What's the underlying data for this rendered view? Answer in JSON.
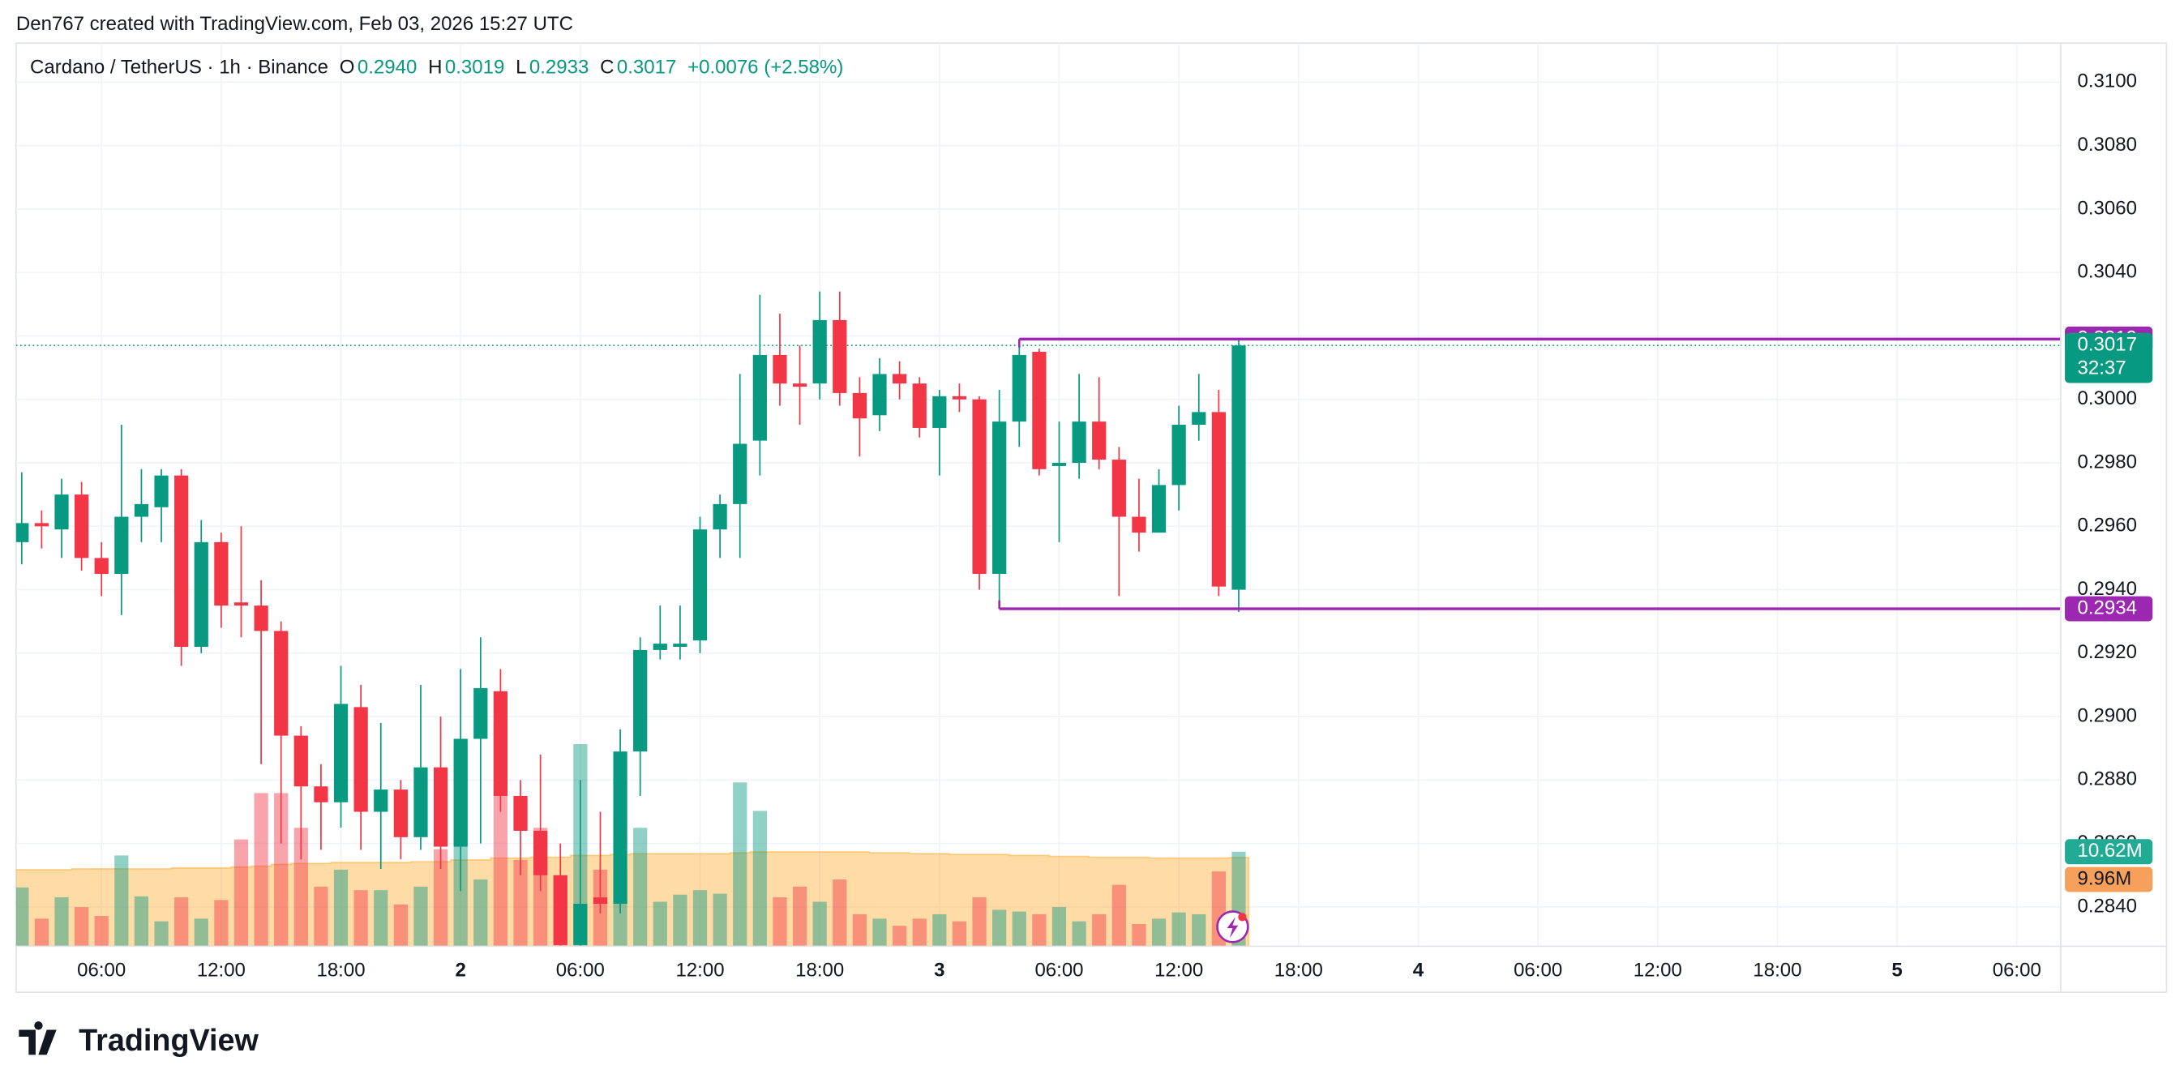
{
  "header": {
    "credit": "Den767 created with TradingView.com, Feb 03, 2026 15:27 UTC",
    "logo": "TradingView"
  },
  "chart_data": {
    "type": "candlestick",
    "symbol": "Cardano / TetherUS · 1h · Binance",
    "legend": {
      "o_key": "O",
      "o": "0.2940",
      "h_key": "H",
      "h": "0.3019",
      "l_key": "L",
      "l": "0.2933",
      "c_key": "C",
      "c": "0.3017",
      "change": "+0.0076 (+2.58%)"
    },
    "categories": [
      null,
      null,
      null,
      null,
      null,
      null,
      null,
      null,
      null,
      null,
      null,
      null,
      null,
      null,
      null,
      null,
      null,
      null,
      null,
      null,
      null,
      null,
      null,
      null,
      null,
      null,
      null,
      null,
      null,
      null,
      null,
      null,
      null,
      null,
      null,
      null,
      null,
      null,
      null,
      null,
      null,
      null,
      null,
      null,
      null,
      null,
      null,
      null,
      null,
      null,
      null,
      null,
      null,
      null,
      null,
      null,
      null,
      null,
      null,
      null,
      null,
      null
    ],
    "open": [
      0.2955,
      0.2961,
      0.2959,
      0.297,
      0.295,
      0.2945,
      0.2963,
      0.2966,
      0.2976,
      0.2922,
      0.2955,
      0.2936,
      0.2935,
      0.2927,
      0.2894,
      0.2878,
      0.2873,
      0.2903,
      0.287,
      0.2877,
      0.2862,
      0.2884,
      0.2859,
      0.2893,
      0.2908,
      0.2875,
      0.2864,
      0.285,
      0.2828,
      0.2843,
      0.2841,
      0.2889,
      0.2921,
      0.2922,
      0.2924,
      0.2959,
      0.2967,
      0.2987,
      0.3014,
      0.3005,
      0.3005,
      0.3025,
      0.3002,
      0.2995,
      0.3008,
      0.3005,
      0.2991,
      0.3001,
      0.3,
      0.2945,
      0.2993,
      0.3015,
      0.2979,
      0.298,
      0.2993,
      0.2981,
      0.2963,
      0.2958,
      0.2973,
      0.2992,
      0.2996,
      0.294
    ],
    "high": [
      0.2977,
      0.2965,
      0.2975,
      0.2974,
      0.2955,
      0.2992,
      0.2978,
      0.2978,
      0.2978,
      0.2962,
      0.2958,
      0.296,
      0.2943,
      0.293,
      0.2897,
      0.2885,
      0.2916,
      0.291,
      0.2898,
      0.288,
      0.291,
      0.29,
      0.2915,
      0.2925,
      0.2915,
      0.288,
      0.2888,
      0.286,
      0.288,
      0.287,
      0.2896,
      0.2925,
      0.2935,
      0.2935,
      0.2963,
      0.297,
      0.3008,
      0.3033,
      0.3027,
      0.3017,
      0.3034,
      0.3034,
      0.3007,
      0.3013,
      0.3012,
      0.3007,
      0.3003,
      0.3005,
      0.3001,
      0.3003,
      0.3019,
      0.3016,
      0.2993,
      0.3008,
      0.3007,
      0.2985,
      0.2975,
      0.2978,
      0.2998,
      0.3008,
      0.3003,
      0.3019
    ],
    "low": [
      0.2948,
      0.2953,
      0.295,
      0.2946,
      0.2938,
      0.2932,
      0.2955,
      0.2955,
      0.2916,
      0.292,
      0.2928,
      0.2925,
      0.2885,
      0.286,
      0.2855,
      0.2858,
      0.2865,
      0.2858,
      0.2852,
      0.2855,
      0.2858,
      0.2852,
      0.2845,
      0.286,
      0.287,
      0.285,
      0.2845,
      0.2826,
      0.2826,
      0.2838,
      0.2838,
      0.2875,
      0.2918,
      0.2918,
      0.292,
      0.295,
      0.295,
      0.2976,
      0.2998,
      0.2992,
      0.3,
      0.2998,
      0.2982,
      0.299,
      0.3,
      0.2988,
      0.2976,
      0.2996,
      0.294,
      0.2934,
      0.2985,
      0.2976,
      0.2955,
      0.2975,
      0.2978,
      0.2938,
      0.2952,
      0.2958,
      0.2965,
      0.2987,
      0.2938,
      0.2933
    ],
    "close": [
      0.2961,
      0.296,
      0.297,
      0.295,
      0.2945,
      0.2963,
      0.2967,
      0.2976,
      0.2922,
      0.2955,
      0.2935,
      0.2935,
      0.2927,
      0.2894,
      0.2878,
      0.2873,
      0.2904,
      0.287,
      0.2877,
      0.2862,
      0.2884,
      0.2859,
      0.2893,
      0.2909,
      0.2875,
      0.2864,
      0.285,
      0.2828,
      0.2841,
      0.2841,
      0.2889,
      0.2921,
      0.2923,
      0.2923,
      0.2959,
      0.2967,
      0.2986,
      0.3014,
      0.3005,
      0.3004,
      0.3025,
      0.3002,
      0.2994,
      0.3008,
      0.3005,
      0.2991,
      0.3001,
      0.3,
      0.2945,
      0.2993,
      0.3014,
      0.2978,
      0.298,
      0.2993,
      0.2981,
      0.2963,
      0.2958,
      0.2973,
      0.2992,
      0.2996,
      0.2941,
      0.3017
    ],
    "volume": {
      "values": [
        6.6,
        3.1,
        5.5,
        4.4,
        3.4,
        10.2,
        5.6,
        2.8,
        5.5,
        3.1,
        5.2,
        12.0,
        17.2,
        17.2,
        13.3,
        6.7,
        8.6,
        6.3,
        6.3,
        4.7,
        6.7,
        10.9,
        22.2,
        7.5,
        25.3,
        9.7,
        13.3,
        7.8,
        22.7,
        8.6,
        8.6,
        13.3,
        5.0,
        5.8,
        6.3,
        5.9,
        18.4,
        15.2,
        5.5,
        6.7,
        5.0,
        7.5,
        3.6,
        3.1,
        2.3,
        3.1,
        3.6,
        2.8,
        5.5,
        4.1,
        3.9,
        3.6,
        4.4,
        2.8,
        3.6,
        6.9,
        2.5,
        3.1,
        3.8,
        3.6,
        8.4,
        10.62
      ],
      "last_label": "10.62M"
    },
    "volume_ma": {
      "values": [
        8.6,
        8.6,
        8.6,
        8.7,
        8.7,
        8.7,
        8.7,
        8.7,
        8.8,
        8.8,
        8.8,
        8.9,
        9.0,
        9.2,
        9.3,
        9.3,
        9.4,
        9.4,
        9.4,
        9.4,
        9.5,
        9.5,
        9.7,
        9.7,
        9.9,
        9.9,
        10.0,
        10.0,
        10.2,
        10.2,
        10.3,
        10.4,
        10.4,
        10.4,
        10.4,
        10.4,
        10.5,
        10.6,
        10.6,
        10.6,
        10.6,
        10.6,
        10.6,
        10.5,
        10.5,
        10.4,
        10.4,
        10.3,
        10.3,
        10.3,
        10.2,
        10.2,
        10.1,
        10.1,
        10.0,
        10.0,
        10.0,
        9.9,
        9.9,
        9.9,
        9.9,
        9.96
      ],
      "last_label": "9.96M"
    },
    "volume_ylim": [
      0,
      50
    ],
    "up_color": "#089981",
    "down_color": "#f23645",
    "line_color": "#9c27b0",
    "ma_color": "#ff9800",
    "high_line": {
      "value": 0.3019,
      "start": 50
    },
    "low_line": {
      "value": 0.2934,
      "start": 49
    },
    "last_price": 0.3017,
    "countdown": "32:37",
    "xlim": [
      -0.28,
      102.2
    ],
    "xticks": [
      {
        "value": 4,
        "label": "06:00"
      },
      {
        "value": 10,
        "label": "12:00"
      },
      {
        "value": 16,
        "label": "18:00"
      },
      {
        "value": 22,
        "label": "2"
      },
      {
        "value": 28,
        "label": "06:00"
      },
      {
        "value": 34,
        "label": "12:00"
      },
      {
        "value": 40,
        "label": "18:00"
      },
      {
        "value": 46,
        "label": "3"
      },
      {
        "value": 52,
        "label": "06:00"
      },
      {
        "value": 58,
        "label": "12:00"
      },
      {
        "value": 64,
        "label": "18:00"
      },
      {
        "value": 70,
        "label": "4"
      },
      {
        "value": 76,
        "label": "06:00"
      },
      {
        "value": 82,
        "label": "12:00"
      },
      {
        "value": 88,
        "label": "18:00"
      },
      {
        "value": 94,
        "label": "5"
      },
      {
        "value": 100,
        "label": "06:00"
      }
    ],
    "ylim": [
      0.28276,
      0.31123
    ],
    "yticks": [
      {
        "value": 0.284,
        "label": "0.2840"
      },
      {
        "value": 0.286,
        "label": "0.2860"
      },
      {
        "value": 0.288,
        "label": "0.2880"
      },
      {
        "value": 0.29,
        "label": "0.2900"
      },
      {
        "value": 0.292,
        "label": "0.2920"
      },
      {
        "value": 0.294,
        "label": "0.2940"
      },
      {
        "value": 0.296,
        "label": "0.2960"
      },
      {
        "value": 0.298,
        "label": "0.2980"
      },
      {
        "value": 0.3,
        "label": "0.3000"
      },
      {
        "value": 0.302,
        "label": "0.3020"
      },
      {
        "value": 0.304,
        "label": "0.3040"
      },
      {
        "value": 0.306,
        "label": "0.3060"
      },
      {
        "value": 0.308,
        "label": "0.3080"
      },
      {
        "value": 0.31,
        "label": "0.3100"
      }
    ],
    "grid": true
  }
}
